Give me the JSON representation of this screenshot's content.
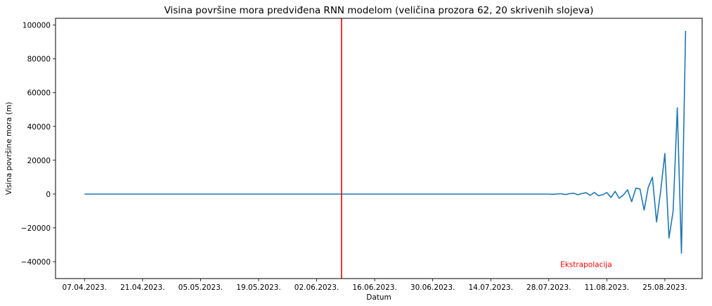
{
  "chart_data": {
    "type": "line",
    "title": "Visina površine mora predviđena RNN modelom (veličina prozora 62, 20 skrivenih slojeva)",
    "xlabel": "Datum",
    "ylabel": "Visina površine mora (m)",
    "x_ticks": [
      "07.04.2023.",
      "21.04.2023.",
      "05.05.2023.",
      "19.05.2023.",
      "02.06.2023.",
      "16.06.2023.",
      "30.06.2023.",
      "14.07.2023.",
      "28.07.2023.",
      "11.08.2023.",
      "25.08.2023."
    ],
    "x_tick_days": [
      0,
      14,
      28,
      42,
      56,
      70,
      84,
      98,
      112,
      126,
      140
    ],
    "xlim_days": [
      -7,
      149
    ],
    "y_ticks": [
      -40000,
      -20000,
      0,
      20000,
      40000,
      60000,
      80000,
      100000
    ],
    "ylim": [
      -50000,
      104000
    ],
    "grid": false,
    "series": [
      {
        "color": "#1f77b4",
        "x_days": [
          0,
          20,
          40,
          60,
          80,
          100,
          110,
          112,
          113,
          114,
          115,
          116,
          117,
          118,
          119,
          120,
          121,
          122,
          123,
          124,
          125,
          126,
          127,
          128,
          129,
          130,
          131,
          132,
          133,
          134,
          135,
          136,
          137,
          138,
          139,
          140,
          141,
          142,
          143,
          144,
          145
        ],
        "values": [
          0,
          0,
          0,
          0,
          0,
          0,
          0,
          0,
          -200,
          100,
          200,
          -300,
          200,
          500,
          -400,
          300,
          800,
          -800,
          1000,
          -1000,
          -400,
          900,
          -2000,
          1600,
          -2500,
          -500,
          2500,
          -4500,
          3500,
          3000,
          -9500,
          4000,
          10000,
          -16500,
          2000,
          24000,
          -26000,
          -10000,
          51000,
          -35000,
          96500
        ]
      }
    ],
    "vline": {
      "x_day": 62,
      "color": "#ff0000"
    },
    "annotation": {
      "text": "Ekstrapolacija",
      "x_day": 121,
      "y": -41500,
      "color": "#ff0000"
    }
  }
}
